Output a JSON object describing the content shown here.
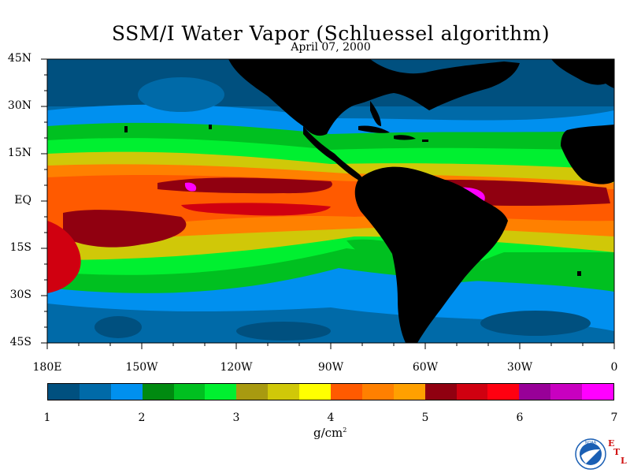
{
  "title": "SSM/I Water Vapor (Schluessel algorithm)",
  "date": "April 07, 2000",
  "lat_labels": [
    "45N",
    "30N",
    "15N",
    "EQ",
    "15S",
    "30S",
    "45S"
  ],
  "lon_labels": [
    "180E",
    "150W",
    "120W",
    "90W",
    "60W",
    "30W",
    "0"
  ],
  "colorbar": {
    "colors": [
      "#00507f",
      "#006aa8",
      "#0090ef",
      "#008a10",
      "#00c020",
      "#00f030",
      "#a89a10",
      "#d0c808",
      "#ffff00",
      "#ff5a00",
      "#ff8000",
      "#ffa000",
      "#900010",
      "#d00010",
      "#ff0010",
      "#980098",
      "#c800c0",
      "#ff00ff"
    ],
    "tick_labels": [
      "1",
      "2",
      "3",
      "4",
      "5",
      "6",
      "7"
    ],
    "unit": "g/cm",
    "unit_sup": "2"
  },
  "land_color": "#000000",
  "logo": {
    "text": "NOAA",
    "letters": [
      "E",
      "T",
      "L"
    ]
  },
  "chart_data": {
    "type": "heatmap",
    "title": "SSM/I Water Vapor (Schluessel algorithm)",
    "subtitle": "April 07, 2000",
    "x_axis": {
      "range": [
        "180E",
        "0"
      ],
      "tick_labels": [
        "180E",
        "150W",
        "120W",
        "90W",
        "60W",
        "30W",
        "0"
      ]
    },
    "y_axis": {
      "range": [
        "45N",
        "45S"
      ],
      "tick_labels": [
        "45N",
        "30N",
        "15N",
        "EQ",
        "15S",
        "30S",
        "45S"
      ]
    },
    "colorbar_range": [
      1,
      7
    ],
    "colorbar_unit": "g/cm²"
  }
}
